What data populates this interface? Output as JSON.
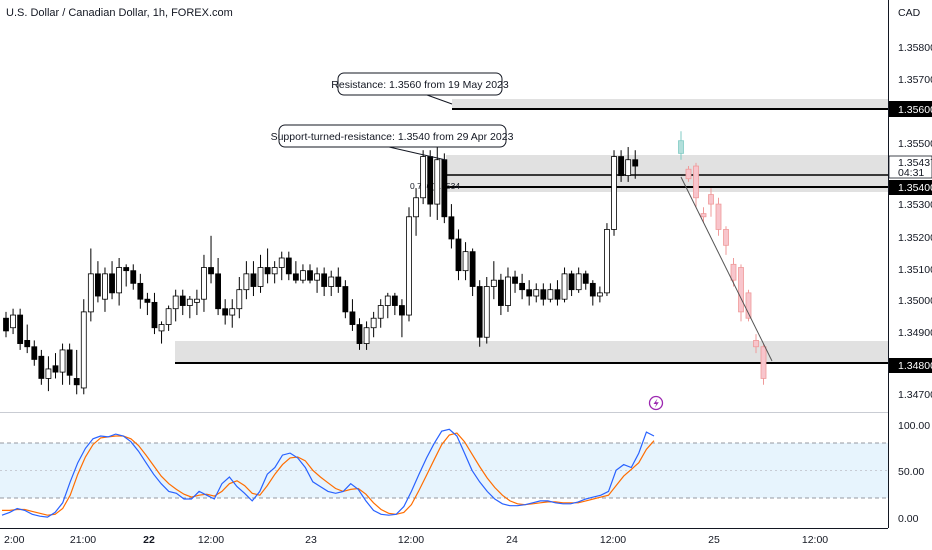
{
  "header": {
    "symbol_title": "U.S. Dollar / Canadian Dollar, 1h, FOREX.com",
    "currency": "CAD"
  },
  "colors": {
    "bull_body": "#ffffff",
    "bear_body": "#000000",
    "candle_outline": "#000000",
    "projection_bull": "#b2dfdb",
    "projection_bear": "#f8c5cc",
    "zone_fill": "#d9d9d9",
    "stoch_k": "#2962ff",
    "stoch_d": "#ff6d00",
    "stoch_band": "#e3f2fd"
  },
  "annotations": {
    "resistance_label": "Resistance: 1.3560 from 19 May 2023",
    "support_turned_label": "Support-turned-resistance: 1.3540 from 29 Apr 2023",
    "fib_label": "0.786(1.3534",
    "timer": "04:31"
  },
  "price_axis": {
    "ticks": [
      "1.35800",
      "1.35700",
      "1.35600",
      "1.35500",
      "1.35437",
      "1.35400",
      "1.35300",
      "1.35200",
      "1.35100",
      "1.35000",
      "1.34900",
      "1.34800",
      "1.34700"
    ],
    "boxed_labels": [
      "1.35600",
      "1.35400",
      "1.34800"
    ]
  },
  "time_axis": {
    "labels": [
      "2:00",
      "21:00",
      "22",
      "12:00",
      "23",
      "12:00",
      "24",
      "12:00",
      "25",
      "12:00"
    ]
  },
  "oscillator_axis": {
    "labels": [
      "100.00",
      "50.00",
      "0.00"
    ]
  },
  "chart_data": [
    {
      "type": "candlestick",
      "title": "U.S. Dollar / Canadian Dollar, 1h, FOREX.com",
      "ylabel": "CAD",
      "ylim": [
        1.3465,
        1.359
      ],
      "levels": [
        1.356,
        1.354,
        1.348
      ],
      "current_price": 1.35437,
      "ohlc": [
        [
          1.3494,
          1.3496,
          1.3488,
          1.349
        ],
        [
          1.3491,
          1.3497,
          1.3489,
          1.3495
        ],
        [
          1.3495,
          1.3497,
          1.3484,
          1.3486
        ],
        [
          1.3487,
          1.3492,
          1.3483,
          1.3485
        ],
        [
          1.3485,
          1.3487,
          1.3479,
          1.3481
        ],
        [
          1.3482,
          1.3484,
          1.3473,
          1.3475
        ],
        [
          1.3475,
          1.3482,
          1.3471,
          1.3478
        ],
        [
          1.3479,
          1.3483,
          1.3475,
          1.3477
        ],
        [
          1.3477,
          1.3486,
          1.3473,
          1.3484
        ],
        [
          1.3484,
          1.3486,
          1.3473,
          1.3476
        ],
        [
          1.3475,
          1.3484,
          1.347,
          1.3473
        ],
        [
          1.3472,
          1.35,
          1.347,
          1.3496
        ],
        [
          1.3496,
          1.3516,
          1.3493,
          1.3508
        ],
        [
          1.3508,
          1.3512,
          1.3499,
          1.3501
        ],
        [
          1.35,
          1.351,
          1.3496,
          1.3508
        ],
        [
          1.3508,
          1.3512,
          1.35,
          1.3502
        ],
        [
          1.3502,
          1.3513,
          1.3498,
          1.351
        ],
        [
          1.351,
          1.3511,
          1.3504,
          1.3509
        ],
        [
          1.3509,
          1.3511,
          1.3503,
          1.3505
        ],
        [
          1.3505,
          1.3508,
          1.3497,
          1.35
        ],
        [
          1.35,
          1.3502,
          1.3495,
          1.3499
        ],
        [
          1.3499,
          1.3502,
          1.3489,
          1.3491
        ],
        [
          1.349,
          1.3493,
          1.3486,
          1.3492
        ],
        [
          1.3492,
          1.3498,
          1.349,
          1.3497
        ],
        [
          1.3497,
          1.3503,
          1.3493,
          1.3501
        ],
        [
          1.3501,
          1.3503,
          1.3495,
          1.3498
        ],
        [
          1.3498,
          1.3501,
          1.3494,
          1.35
        ],
        [
          1.3499,
          1.3503,
          1.3495,
          1.35
        ],
        [
          1.35,
          1.3514,
          1.3496,
          1.351
        ],
        [
          1.351,
          1.352,
          1.3505,
          1.3508
        ],
        [
          1.3508,
          1.3513,
          1.3495,
          1.3497
        ],
        [
          1.3497,
          1.35,
          1.3492,
          1.3495
        ],
        [
          1.3495,
          1.35,
          1.3491,
          1.3497
        ],
        [
          1.3497,
          1.3507,
          1.3494,
          1.3503
        ],
        [
          1.3503,
          1.3512,
          1.35,
          1.3508
        ],
        [
          1.3508,
          1.3512,
          1.3501,
          1.3504
        ],
        [
          1.3504,
          1.3514,
          1.3502,
          1.351
        ],
        [
          1.351,
          1.3516,
          1.3505,
          1.3508
        ],
        [
          1.3508,
          1.3512,
          1.3505,
          1.351
        ],
        [
          1.351,
          1.3515,
          1.3506,
          1.3513
        ],
        [
          1.3513,
          1.3515,
          1.3506,
          1.3508
        ],
        [
          1.3508,
          1.3512,
          1.3505,
          1.3506
        ],
        [
          1.3506,
          1.3511,
          1.3505,
          1.3509
        ],
        [
          1.3509,
          1.3511,
          1.3505,
          1.3506
        ],
        [
          1.3506,
          1.351,
          1.3502,
          1.3508
        ],
        [
          1.3508,
          1.351,
          1.3501,
          1.3504
        ],
        [
          1.3504,
          1.3509,
          1.3501,
          1.3507
        ],
        [
          1.3507,
          1.351,
          1.3502,
          1.3504
        ],
        [
          1.3504,
          1.3506,
          1.3494,
          1.3496
        ],
        [
          1.3496,
          1.35,
          1.349,
          1.3492
        ],
        [
          1.3492,
          1.3494,
          1.3484,
          1.3486
        ],
        [
          1.3486,
          1.3493,
          1.3484,
          1.3491
        ],
        [
          1.3491,
          1.3496,
          1.3488,
          1.3494
        ],
        [
          1.3494,
          1.35,
          1.3491,
          1.3498
        ],
        [
          1.3498,
          1.3502,
          1.3494,
          1.3501
        ],
        [
          1.3501,
          1.3502,
          1.3495,
          1.3498
        ],
        [
          1.3498,
          1.35,
          1.3488,
          1.3495
        ],
        [
          1.3495,
          1.3529,
          1.3493,
          1.3526
        ],
        [
          1.3526,
          1.3535,
          1.352,
          1.3532
        ],
        [
          1.3532,
          1.3547,
          1.353,
          1.3545
        ],
        [
          1.3545,
          1.3547,
          1.3526,
          1.353
        ],
        [
          1.353,
          1.3548,
          1.3525,
          1.3544
        ],
        [
          1.3544,
          1.3546,
          1.3524,
          1.3526
        ],
        [
          1.3526,
          1.353,
          1.3516,
          1.3519
        ],
        [
          1.3519,
          1.3522,
          1.3506,
          1.3509
        ],
        [
          1.3509,
          1.3518,
          1.3506,
          1.3515
        ],
        [
          1.3515,
          1.3516,
          1.3501,
          1.3504
        ],
        [
          1.3504,
          1.3506,
          1.3485,
          1.3488
        ],
        [
          1.3488,
          1.3507,
          1.3486,
          1.3504
        ],
        [
          1.3504,
          1.3512,
          1.35,
          1.3506
        ],
        [
          1.3506,
          1.3508,
          1.3495,
          1.3498
        ],
        [
          1.3498,
          1.351,
          1.3496,
          1.3507
        ],
        [
          1.3507,
          1.3509,
          1.3502,
          1.3505
        ],
        [
          1.3505,
          1.3508,
          1.35,
          1.3503
        ],
        [
          1.3503,
          1.3506,
          1.3498,
          1.3501
        ],
        [
          1.3501,
          1.3505,
          1.3499,
          1.3503
        ],
        [
          1.3503,
          1.3505,
          1.3498,
          1.35
        ],
        [
          1.35,
          1.3505,
          1.3499,
          1.3503
        ],
        [
          1.3503,
          1.3506,
          1.3498,
          1.35
        ],
        [
          1.35,
          1.351,
          1.3499,
          1.3508
        ],
        [
          1.3508,
          1.3509,
          1.3501,
          1.3503
        ],
        [
          1.3503,
          1.351,
          1.3502,
          1.3508
        ],
        [
          1.3508,
          1.3509,
          1.3503,
          1.3505
        ],
        [
          1.3505,
          1.3506,
          1.3498,
          1.3501
        ],
        [
          1.3501,
          1.3504,
          1.3499,
          1.3502
        ],
        [
          1.3502,
          1.3524,
          1.3501,
          1.3522
        ],
        [
          1.3522,
          1.3547,
          1.352,
          1.3545
        ],
        [
          1.3545,
          1.3547,
          1.3537,
          1.3539
        ],
        [
          1.3539,
          1.3548,
          1.3537,
          1.3544
        ],
        [
          1.3544,
          1.3547,
          1.3538,
          1.3542
        ]
      ]
    },
    {
      "type": "candlestick",
      "series": [
        {
          "name": "",
          "values": []
        }
      ],
      "ohlc": [
        [
          1.3546,
          1.3553,
          1.3544,
          1.355
        ],
        [
          1.3541,
          1.3542,
          1.3537,
          1.3538
        ],
        [
          1.3542,
          1.3543,
          1.3529,
          1.3532
        ],
        [
          1.3527,
          1.3529,
          1.3524,
          1.3526
        ],
        [
          1.3533,
          1.3535,
          1.3526,
          1.353
        ],
        [
          1.353,
          1.3532,
          1.352,
          1.3522
        ],
        [
          1.3522,
          1.3523,
          1.3514,
          1.3517
        ],
        [
          1.3511,
          1.3513,
          1.3504,
          1.3506
        ],
        [
          1.351,
          1.3511,
          1.3493,
          1.3496
        ],
        [
          1.3502,
          1.3503,
          1.3493,
          1.3494
        ],
        [
          1.3487,
          1.3489,
          1.3483,
          1.3485
        ],
        [
          1.3485,
          1.3486,
          1.3473,
          1.3475
        ]
      ]
    },
    {
      "type": "line",
      "ylim": [
        0,
        100
      ],
      "levels": [
        80,
        20
      ],
      "series": [
        {
          "name": "",
          "values": [
            5,
            8,
            12,
            10,
            6,
            4,
            3,
            8,
            18,
            40,
            60,
            75,
            85,
            88,
            87,
            90,
            88,
            82,
            72,
            60,
            48,
            38,
            30,
            28,
            22,
            22,
            30,
            26,
            22,
            38,
            45,
            35,
            28,
            20,
            30,
            48,
            55,
            68,
            70,
            65,
            55,
            40,
            35,
            30,
            28,
            30,
            38,
            32,
            20,
            10,
            6,
            5,
            6,
            14,
            30,
            48,
            65,
            80,
            93,
            95,
            88,
            70,
            52,
            40,
            30,
            22,
            17,
            15,
            15,
            16,
            18,
            20,
            20,
            18,
            17,
            17,
            19,
            22,
            24,
            26,
            30,
            52,
            58,
            55,
            70,
            92,
            88
          ]
        },
        {
          "name": "",
          "values": [
            10,
            10,
            11,
            11,
            9,
            7,
            5,
            6,
            12,
            26,
            48,
            66,
            79,
            86,
            87,
            88,
            88,
            85,
            78,
            68,
            57,
            46,
            38,
            32,
            27,
            24,
            26,
            27,
            25,
            30,
            38,
            41,
            36,
            28,
            26,
            36,
            48,
            58,
            65,
            66,
            62,
            52,
            45,
            39,
            33,
            30,
            32,
            33,
            27,
            18,
            11,
            7,
            6,
            8,
            16,
            31,
            47,
            63,
            79,
            89,
            91,
            82,
            69,
            56,
            44,
            34,
            26,
            20,
            17,
            16,
            17,
            18,
            19,
            19,
            18,
            18,
            18,
            20,
            22,
            24,
            26,
            36,
            46,
            53,
            60,
            74,
            83
          ]
        }
      ]
    }
  ]
}
